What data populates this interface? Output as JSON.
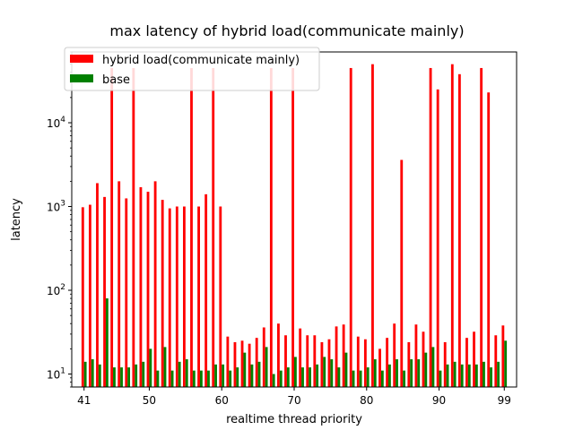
{
  "chart_data": {
    "type": "bar",
    "title": "max latency of hybrid load(communicate mainly)",
    "xlabel": "realtime thread priority",
    "ylabel": "latency",
    "yscale": "log",
    "ylim": [
      7,
      70000
    ],
    "xlim": [
      39.3,
      100.7
    ],
    "x_ticks": [
      41,
      50,
      60,
      70,
      80,
      90,
      99
    ],
    "y_ticks": [
      {
        "value": 10,
        "base": "10",
        "exp": "1"
      },
      {
        "value": 100,
        "base": "10",
        "exp": "2"
      },
      {
        "value": 1000,
        "base": "10",
        "exp": "3"
      },
      {
        "value": 10000,
        "base": "10",
        "exp": "4"
      }
    ],
    "legend_position": "upper left",
    "x": [
      41,
      42,
      43,
      44,
      45,
      46,
      47,
      48,
      49,
      50,
      51,
      52,
      53,
      54,
      55,
      56,
      57,
      58,
      59,
      60,
      61,
      62,
      63,
      64,
      65,
      66,
      67,
      68,
      69,
      70,
      71,
      72,
      73,
      74,
      75,
      76,
      77,
      78,
      79,
      80,
      81,
      82,
      83,
      84,
      85,
      86,
      87,
      88,
      89,
      90,
      91,
      92,
      93,
      94,
      95,
      96,
      97,
      98,
      99
    ],
    "series": [
      {
        "name": "hybrid load(communicate mainly)",
        "color": "#ff0000",
        "values": [
          980,
          1050,
          1900,
          1300,
          45000,
          2000,
          1250,
          45000,
          1700,
          1500,
          2000,
          1200,
          950,
          1000,
          1000,
          45000,
          1000,
          1400,
          45000,
          1000,
          28,
          24,
          25,
          23,
          27,
          36,
          45000,
          40,
          29,
          45000,
          35,
          29,
          29,
          24,
          26,
          37,
          39,
          45000,
          28,
          26,
          50000,
          20,
          27,
          40,
          3600,
          24,
          39,
          32,
          45000,
          25000,
          24,
          50000,
          38000,
          27,
          32,
          45000,
          23000,
          29,
          38
        ]
      },
      {
        "name": "base",
        "color": "#008000",
        "values": [
          14,
          15,
          13,
          80,
          12,
          12,
          12,
          13,
          14,
          20,
          11,
          21,
          11,
          14,
          15,
          11,
          11,
          11,
          13,
          13,
          11,
          12,
          18,
          13,
          14,
          21,
          10,
          11,
          12,
          16,
          12,
          12,
          13,
          16,
          15,
          12,
          18,
          11,
          11,
          12,
          15,
          11,
          13,
          15,
          11,
          15,
          15,
          18,
          21,
          11,
          13,
          14,
          13,
          13,
          13,
          14,
          12,
          14,
          25
        ]
      }
    ]
  }
}
